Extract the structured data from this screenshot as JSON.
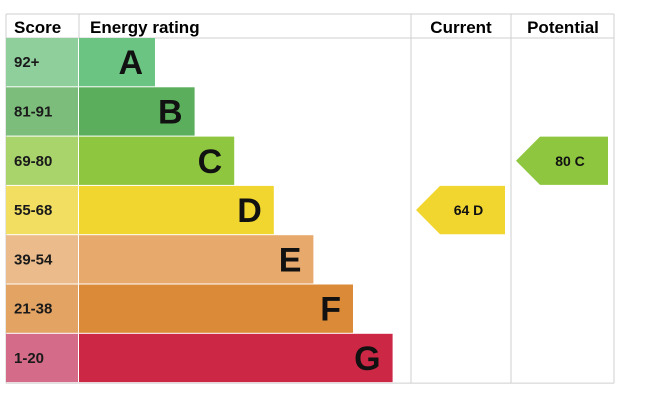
{
  "chart_data": {
    "type": "bar",
    "headers": {
      "score": "Score",
      "rating": "Energy rating",
      "current": "Current",
      "potential": "Potential"
    },
    "bands": [
      {
        "score": "92+",
        "letter": "A",
        "color": "#6cc483",
        "score_color": "#8fcf9b"
      },
      {
        "score": "81-91",
        "letter": "B",
        "color": "#5aae5c",
        "score_color": "#7dbd7b"
      },
      {
        "score": "69-80",
        "letter": "C",
        "color": "#8ec63f",
        "score_color": "#a9d36b"
      },
      {
        "score": "55-68",
        "letter": "D",
        "color": "#f1d630",
        "score_color": "#f2df62"
      },
      {
        "score": "39-54",
        "letter": "E",
        "color": "#e8aa6c",
        "score_color": "#ebbb8b"
      },
      {
        "score": "21-38",
        "letter": "F",
        "color": "#db8a37",
        "score_color": "#e3a363"
      },
      {
        "score": "1-20",
        "letter": "G",
        "color": "#cc2744",
        "score_color": "#d46b88"
      }
    ],
    "current": {
      "value": 64,
      "letter": "D",
      "label": "64  D",
      "color": "#f1d630"
    },
    "potential": {
      "value": 80,
      "letter": "C",
      "label": "80  C",
      "color": "#8ec63f"
    }
  }
}
